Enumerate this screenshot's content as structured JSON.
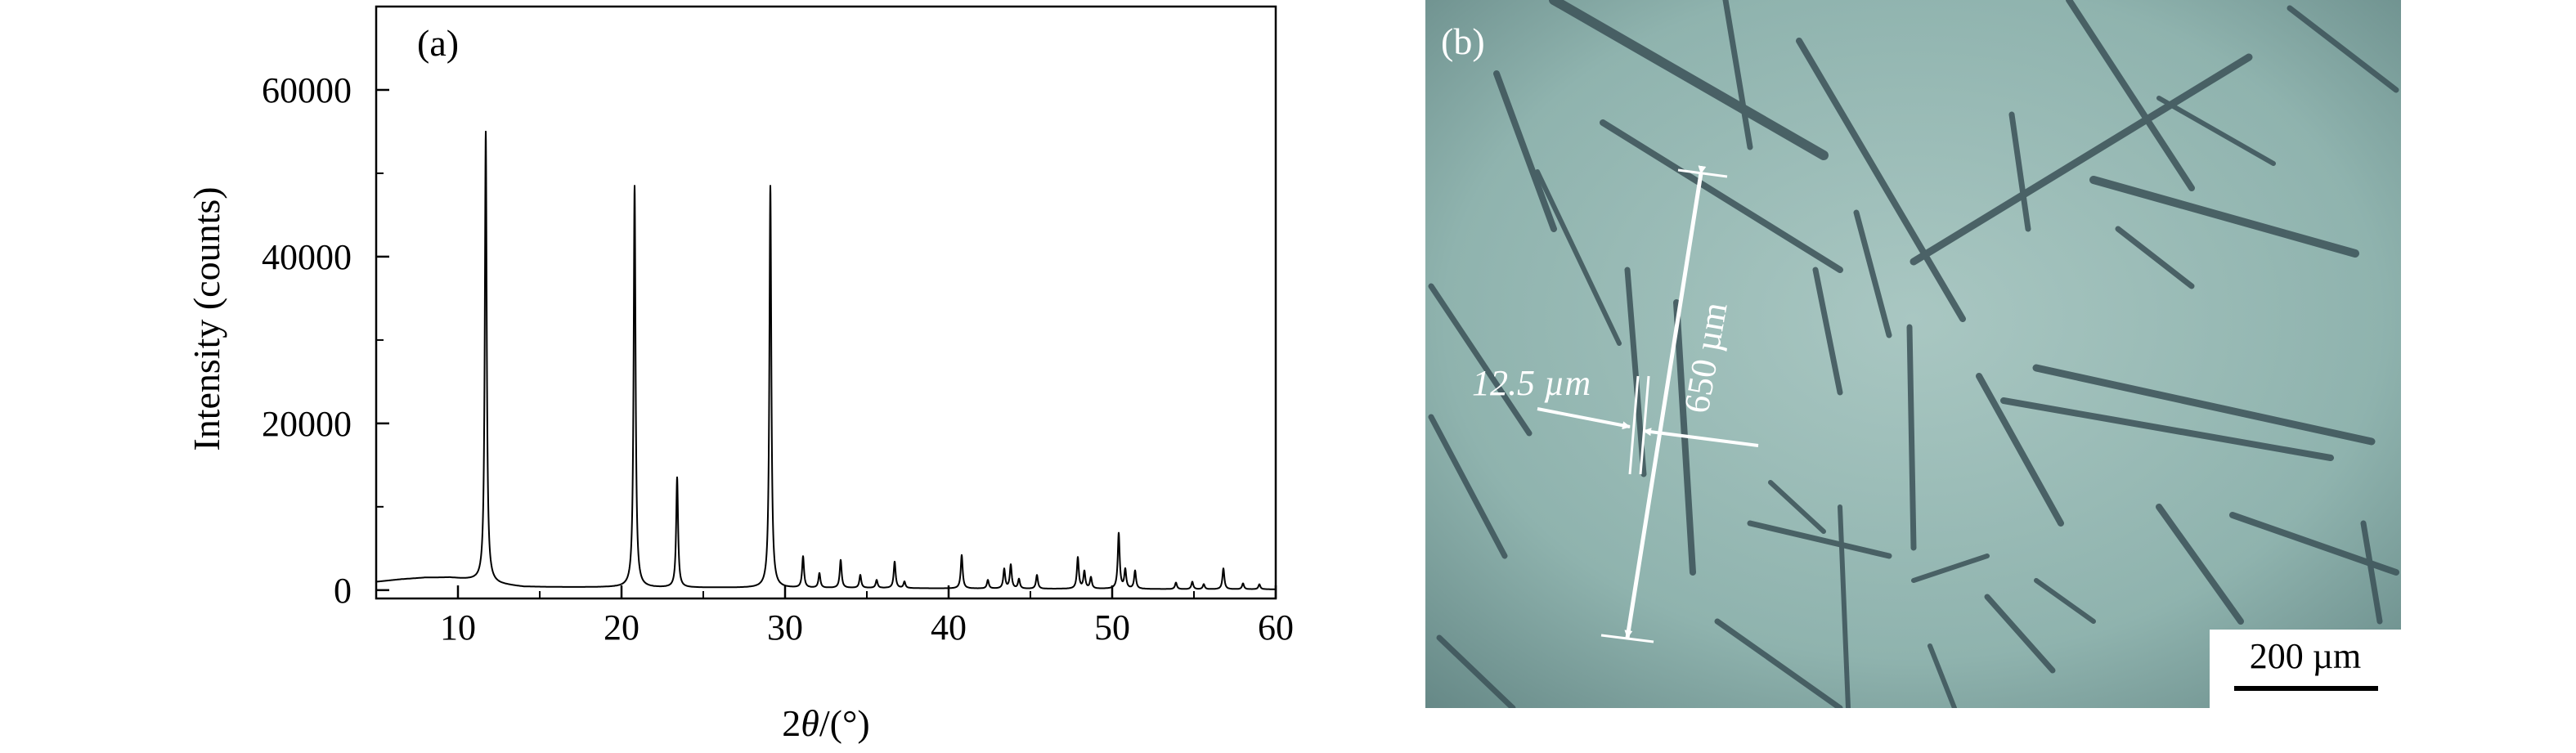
{
  "panel_a": {
    "label": "(a)",
    "xlabel_prefix": "2",
    "xlabel_symbol": "θ",
    "xlabel_suffix": "/(°)",
    "ylabel": "Intensity (counts)"
  },
  "panel_b": {
    "label": "(b)",
    "length_annotation": "650 µm",
    "width_annotation": "12.5 µm",
    "scale_bar_label": "200 µm"
  },
  "colors": {
    "line": "#000000",
    "micrograph_background": "#7fa4a0",
    "crystal_edge": "#3c5258",
    "annotation": "#ffffff"
  },
  "chart_data": {
    "type": "line",
    "title": "",
    "xlabel": "2θ/(°)",
    "ylabel": "Intensity (counts)",
    "xlim": [
      5,
      60
    ],
    "ylim": [
      -1000,
      70000
    ],
    "xticks": [
      10,
      20,
      30,
      40,
      50,
      60
    ],
    "yticks": [
      0,
      20000,
      40000,
      60000
    ],
    "grid": false,
    "background": [
      [
        5,
        1000
      ],
      [
        6.5,
        1300
      ],
      [
        8,
        1500
      ],
      [
        9.5,
        1500
      ],
      [
        11,
        1200
      ],
      [
        12.5,
        700
      ],
      [
        14,
        400
      ],
      [
        17,
        350
      ],
      [
        20,
        350
      ],
      [
        22,
        300
      ],
      [
        26,
        300
      ],
      [
        30,
        250
      ],
      [
        35,
        250
      ],
      [
        40,
        200
      ],
      [
        45,
        150
      ],
      [
        50,
        150
      ],
      [
        55,
        100
      ],
      [
        60,
        100
      ]
    ],
    "peaks": [
      {
        "x": 11.7,
        "y": 55000
      },
      {
        "x": 20.8,
        "y": 48500
      },
      {
        "x": 23.4,
        "y": 13500
      },
      {
        "x": 29.1,
        "y": 48500
      },
      {
        "x": 31.1,
        "y": 4000
      },
      {
        "x": 32.1,
        "y": 2000
      },
      {
        "x": 33.4,
        "y": 3600
      },
      {
        "x": 34.6,
        "y": 1800
      },
      {
        "x": 35.6,
        "y": 1200
      },
      {
        "x": 36.7,
        "y": 3400
      },
      {
        "x": 37.3,
        "y": 1000
      },
      {
        "x": 40.8,
        "y": 4200
      },
      {
        "x": 42.4,
        "y": 1200
      },
      {
        "x": 43.4,
        "y": 2500
      },
      {
        "x": 43.8,
        "y": 3000
      },
      {
        "x": 44.3,
        "y": 1300
      },
      {
        "x": 45.4,
        "y": 1800
      },
      {
        "x": 47.9,
        "y": 3900
      },
      {
        "x": 48.3,
        "y": 2200
      },
      {
        "x": 48.7,
        "y": 1500
      },
      {
        "x": 50.4,
        "y": 6800
      },
      {
        "x": 50.8,
        "y": 2400
      },
      {
        "x": 51.4,
        "y": 2300
      },
      {
        "x": 53.9,
        "y": 900
      },
      {
        "x": 54.9,
        "y": 1000
      },
      {
        "x": 55.6,
        "y": 700
      },
      {
        "x": 56.8,
        "y": 2600
      },
      {
        "x": 58.0,
        "y": 800
      },
      {
        "x": 59.0,
        "y": 700
      }
    ]
  }
}
